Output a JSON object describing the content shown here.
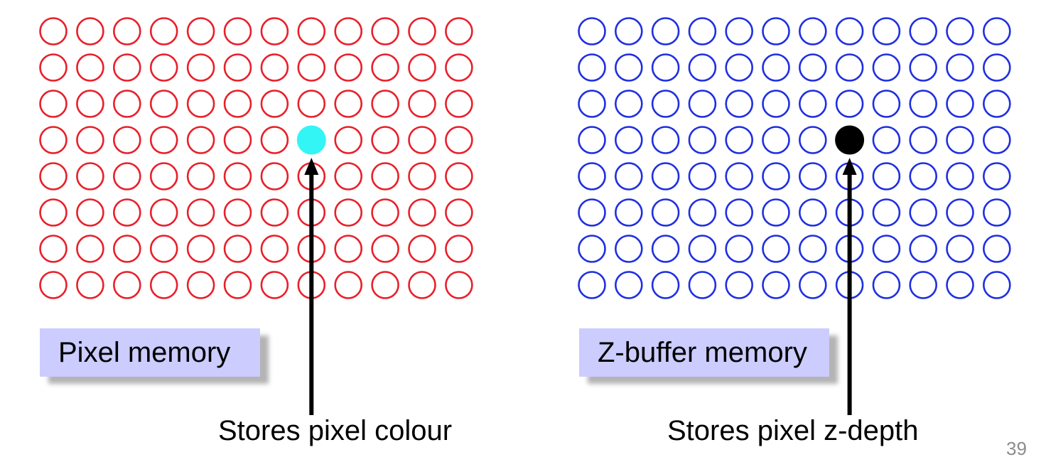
{
  "panels": [
    {
      "id": "pixel",
      "rows": 8,
      "cols": 12,
      "ring_color": "#e8202a",
      "filled_cell": {
        "row": 4,
        "col": 8
      },
      "filled_color": "#33f5f5",
      "label": "Pixel memory",
      "caption": "Stores pixel colour"
    },
    {
      "id": "zbuffer",
      "rows": 8,
      "cols": 12,
      "ring_color": "#1f2fe0",
      "filled_cell": {
        "row": 4,
        "col": 8
      },
      "filled_color": "#000000",
      "label": "Z-buffer memory",
      "caption": "Stores pixel z-depth"
    }
  ],
  "label_box_color": "#ccccff",
  "arrow_color": "#000000",
  "page_number": "39"
}
